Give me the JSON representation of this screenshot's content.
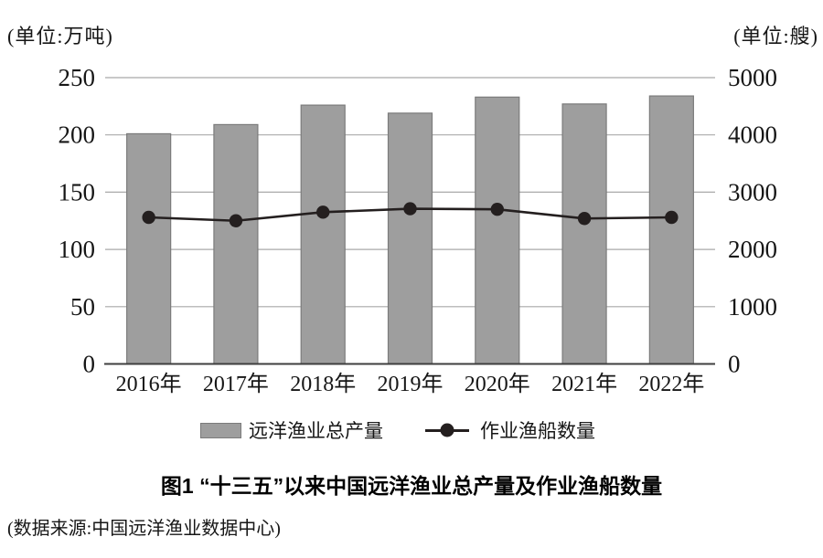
{
  "chart_data": {
    "type": "bar",
    "categories": [
      "2016年",
      "2017年",
      "2018年",
      "2019年",
      "2020年",
      "2021年",
      "2022年"
    ],
    "series": [
      {
        "name": "远洋渔业总产量",
        "type": "bar",
        "axis": "left",
        "values": [
          201,
          209,
          226,
          219,
          233,
          227,
          234
        ]
      },
      {
        "name": "作业渔船数量",
        "type": "line",
        "axis": "right",
        "values": [
          2560,
          2500,
          2650,
          2710,
          2700,
          2540,
          2560
        ]
      }
    ],
    "title": "图1 “十三五”以来中国远洋渔业总产量及作业渔船数量",
    "source": "(数据来源:中国远洋渔业数据中心)",
    "left_axis": {
      "unit_label": "(单位:万吨)",
      "min": 0,
      "max": 250,
      "tick_step": 50,
      "ticks": [
        0,
        50,
        100,
        150,
        200,
        250
      ]
    },
    "right_axis": {
      "unit_label": "(单位:艘)",
      "min": 0,
      "max": 5000,
      "tick_step": 1000,
      "ticks": [
        0,
        1000,
        2000,
        3000,
        4000,
        5000
      ]
    },
    "grid": true,
    "legend_position": "bottom",
    "colors": {
      "bar_fill": "#9e9e9e",
      "bar_stroke": "#7b7b7b",
      "line": "#241f1f",
      "grid": "#a9a9a9",
      "axis": "#3f3f3f",
      "text": "#161616"
    }
  }
}
